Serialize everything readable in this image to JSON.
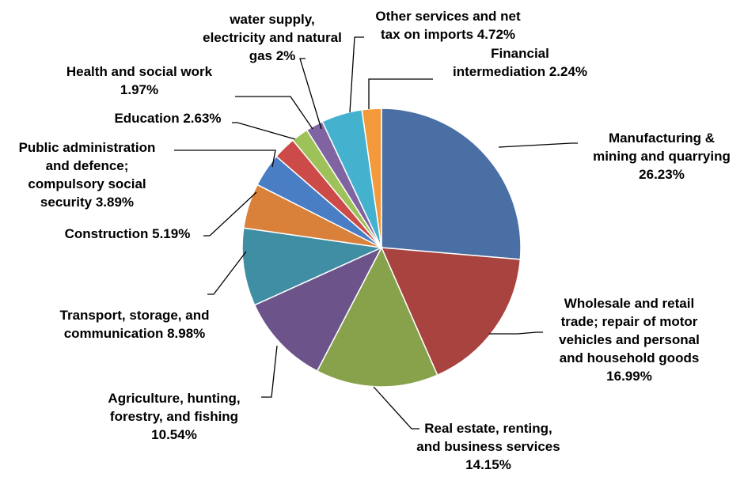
{
  "chart_data": {
    "type": "pie",
    "title": "",
    "legend": "none",
    "slices": [
      {
        "name": "Manufacturing & mining and quarrying",
        "value": 26.23,
        "color": "#4a6fa5",
        "label_lines": [
          "Manufacturing &",
          "mining and quarrying",
          "26.23%"
        ]
      },
      {
        "name": "Wholesale and retail trade; repair of motor vehicles and personal and household goods",
        "value": 16.99,
        "color": "#a8433f",
        "label_lines": [
          "Wholesale and retail",
          "trade; repair of motor",
          "vehicles and personal",
          "and household goods",
          "16.99%"
        ]
      },
      {
        "name": "Real estate, renting, and business services",
        "value": 14.15,
        "color": "#87a24b",
        "label_lines": [
          "Real estate, renting,",
          "and business services",
          "14.15%"
        ]
      },
      {
        "name": "Agriculture, hunting, forestry, and fishing",
        "value": 10.54,
        "color": "#6c548a",
        "label_lines": [
          "Agriculture, hunting,",
          "forestry, and fishing",
          "10.54%"
        ]
      },
      {
        "name": "Transport, storage, and communication",
        "value": 8.98,
        "color": "#3f8ea4",
        "label_lines": [
          "Transport, storage, and",
          "communication 8.98%"
        ]
      },
      {
        "name": "Construction",
        "value": 5.19,
        "color": "#d9813a",
        "label_lines": [
          "Construction 5.19%"
        ]
      },
      {
        "name": "Public administration and defence; compulsory social security",
        "value": 3.89,
        "color": "#4a7ec4",
        "label_lines": [
          "Public administration",
          "and defence;",
          "compulsory social",
          "security  3.89%"
        ]
      },
      {
        "name": "Education",
        "value": 2.63,
        "color": "#cc4a47",
        "label_lines": [
          "Education 2.63%"
        ]
      },
      {
        "name": "Health and social work",
        "value": 1.97,
        "color": "#9ec25a",
        "label_lines": [
          "Health and social work",
          "1.97%"
        ]
      },
      {
        "name": "water supply, electricity and natural gas",
        "value": 2.0,
        "color": "#8064a2",
        "label_lines": [
          "water supply,",
          "electricity and natural",
          "gas 2%"
        ]
      },
      {
        "name": "Other services and net tax on imports",
        "value": 4.72,
        "color": "#44b2cf",
        "label_lines": [
          "Other services and net",
          "tax on imports 4.72%"
        ]
      },
      {
        "name": "Financial intermediation",
        "value": 2.24,
        "color": "#f59a3c",
        "label_lines": [
          "Financial",
          "intermediation 2.24%"
        ]
      }
    ]
  }
}
